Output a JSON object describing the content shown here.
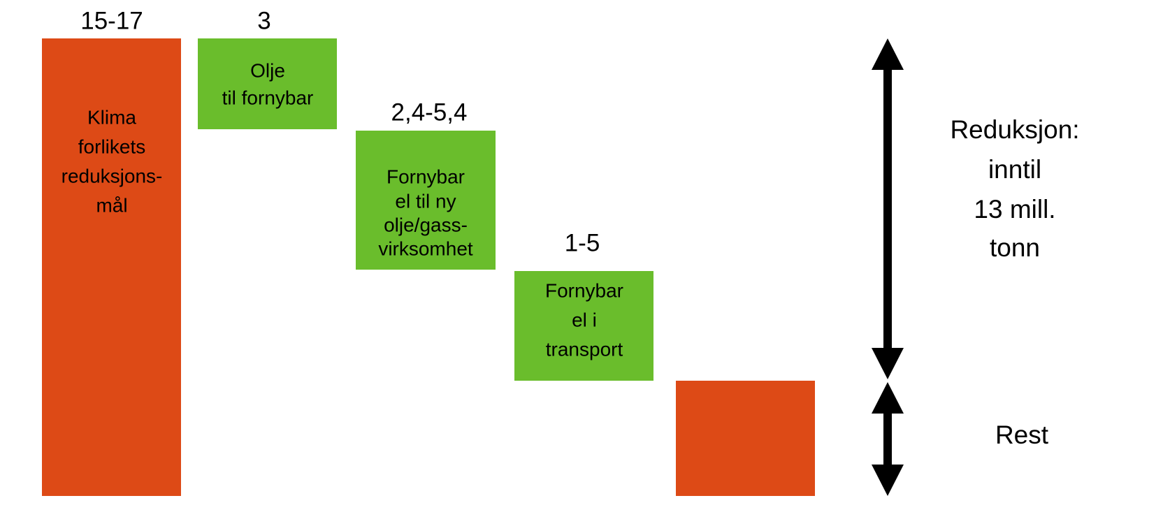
{
  "blocks": [
    {
      "value_label": "15-17",
      "lines": [
        "Klima",
        "forlikets",
        "reduksjons-",
        "mål"
      ]
    },
    {
      "value_label": "3",
      "lines": [
        "Olje",
        "til fornybar"
      ]
    },
    {
      "value_label": "2,4-5,4",
      "lines": [
        "Fornybar",
        "el til ny",
        "olje/gass-",
        "virksomhet"
      ]
    },
    {
      "value_label": "1-5",
      "lines": [
        "Fornybar",
        "el i",
        "transport"
      ]
    }
  ],
  "arrows": [
    {
      "lines": [
        "Reduksjon:",
        "inntil",
        "13 mill.",
        "tonn"
      ]
    },
    {
      "lines": [
        "Rest"
      ]
    }
  ]
}
